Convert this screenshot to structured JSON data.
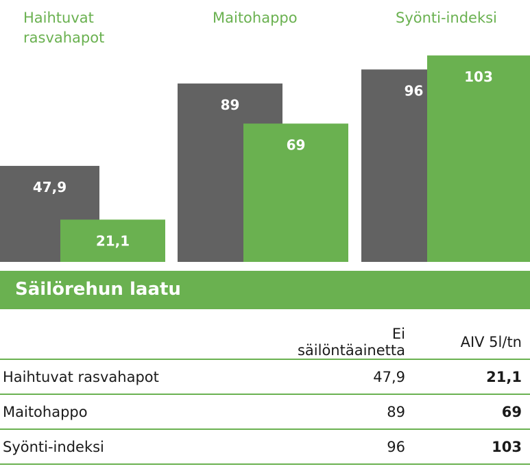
{
  "chart_data": {
    "type": "bar",
    "categories": [
      "Haihtuvat rasvahapot",
      "Maitohappo",
      "Syönti-indeksi"
    ],
    "category_labels": [
      [
        "Haihtuvat",
        "rasvahapot"
      ],
      [
        "Maitohappo"
      ],
      [
        "Syönti-indeksi"
      ]
    ],
    "series": [
      {
        "name": "Ei säilöntäainetta",
        "values": [
          47.9,
          89,
          96
        ],
        "labels": [
          "47,9",
          "89",
          "96"
        ],
        "color": "#626262"
      },
      {
        "name": "AIV 5l/tn",
        "values": [
          21.1,
          69,
          103
        ],
        "labels": [
          "21,1",
          "69",
          "103"
        ],
        "color": "#6ab150"
      }
    ],
    "ylim": [
      0,
      105
    ],
    "grid": false,
    "title": "",
    "xlabel": "",
    "ylabel": ""
  },
  "section_title": "Säilörehun laatu",
  "table": {
    "headers": [
      "",
      "Ei säilöntäainetta",
      "AIV 5l/tn"
    ],
    "rows": [
      {
        "label": "Haihtuvat rasvahapot",
        "no_additive": "47,9",
        "aiv": "21,1"
      },
      {
        "label": "Maitohappo",
        "no_additive": "89",
        "aiv": "69"
      },
      {
        "label": "Syönti-indeksi",
        "no_additive": "96",
        "aiv": "103"
      }
    ]
  },
  "colors": {
    "accent_green": "#6ab150",
    "dark_gray": "#626262"
  }
}
